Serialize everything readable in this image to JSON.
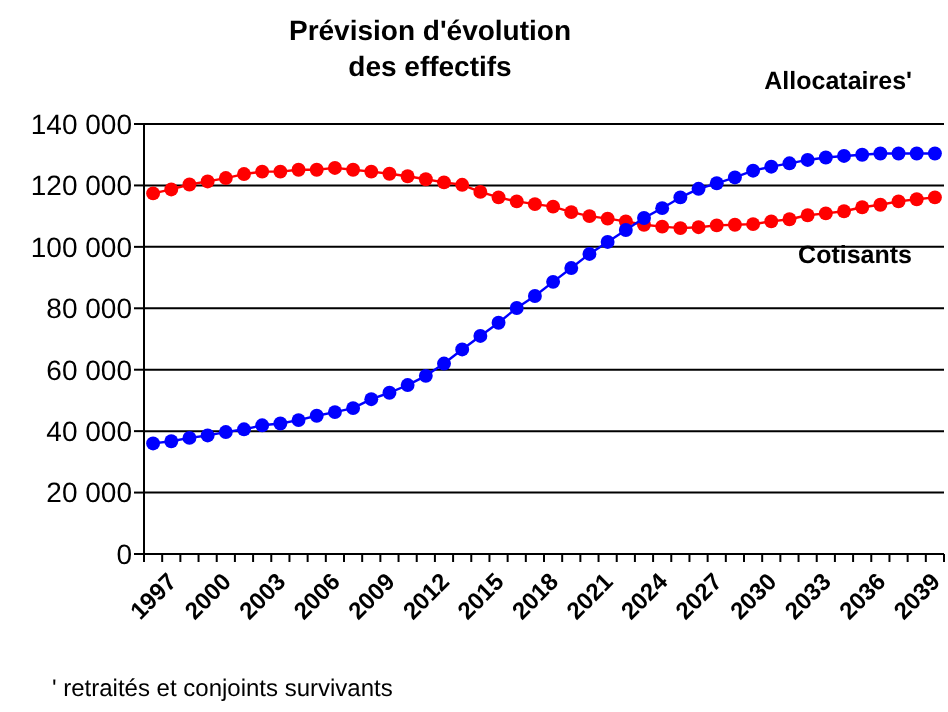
{
  "chart_data": {
    "type": "line",
    "title": "Prévision d'évolution\ndes effectifs",
    "categories": [
      "1997",
      null,
      null,
      "2000",
      null,
      null,
      "2003",
      null,
      null,
      "2006",
      null,
      null,
      "2009",
      null,
      null,
      "2012",
      null,
      null,
      "2015",
      null,
      null,
      "2018",
      null,
      null,
      "2021",
      null,
      null,
      "2024",
      null,
      null,
      "2027",
      null,
      null,
      "2030",
      null,
      null,
      "2033",
      null,
      null,
      "2036",
      null,
      null,
      "2039",
      null
    ],
    "series": [
      {
        "name": "Allocataires'",
        "color": "#0000ff",
        "values": [
          36000,
          36700,
          37800,
          38600,
          39700,
          40600,
          41900,
          42500,
          43600,
          45000,
          46200,
          47500,
          50400,
          52500,
          55000,
          58000,
          62000,
          66600,
          71000,
          75300,
          80100,
          84000,
          88600,
          93100,
          97700,
          101600,
          105500,
          109400,
          112600,
          116100,
          118900,
          120700,
          122600,
          124800,
          126100,
          127200,
          128300,
          129100,
          129600,
          130000,
          130400,
          130400,
          130400,
          130400
        ]
      },
      {
        "name": "Cotisants",
        "color": "#ff0000",
        "values": [
          117400,
          118700,
          120300,
          121300,
          122400,
          123700,
          124500,
          124500,
          125100,
          125100,
          125700,
          125100,
          124500,
          123800,
          123000,
          122000,
          121000,
          120200,
          117900,
          116100,
          114800,
          113900,
          113100,
          111300,
          110000,
          109200,
          108300,
          107200,
          106600,
          106100,
          106400,
          107000,
          107200,
          107400,
          108300,
          109000,
          110300,
          110900,
          111600,
          112900,
          113700,
          114800,
          115500,
          116100
        ]
      }
    ],
    "ylim": [
      0,
      140000
    ],
    "yticks": [
      0,
      {
        "value": 20000,
        "label": "20 000"
      },
      {
        "value": 40000,
        "label": "40 000"
      },
      {
        "value": 60000,
        "label": "60 000"
      },
      {
        "value": 80000,
        "label": "80 000"
      },
      {
        "value": 100000,
        "label": "100 000"
      },
      {
        "value": 120000,
        "label": "120 000"
      },
      {
        "value": 140000,
        "label": "140 000"
      }
    ],
    "grid": "y",
    "legend": "right",
    "marker": "circle",
    "line_style": "solid",
    "annotations": [
      "' retraités et conjoints survivants"
    ]
  }
}
